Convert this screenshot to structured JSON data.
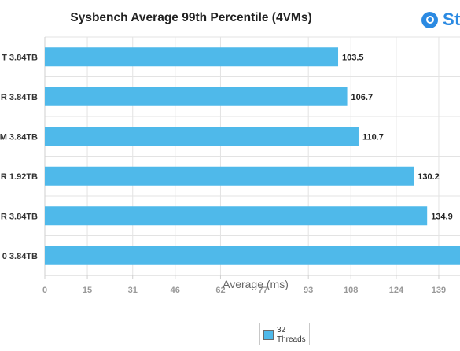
{
  "chart_data": {
    "type": "bar",
    "orientation": "horizontal",
    "title": "Sysbench Average 99th Percentile (4VMs)",
    "xlabel": "Average (ms)",
    "categories": [
      "T 3.84TB",
      "R 3.84TB",
      "M 3.84TB",
      "R 1.92TB",
      "R 3.84TB",
      "0 3.84TB"
    ],
    "series": [
      {
        "name": "32 Threads",
        "color": "#4fb9ea",
        "values": [
          103.5,
          106.7,
          110.7,
          130.2,
          134.9,
          150
        ]
      }
    ],
    "value_labels": [
      "103.5",
      "106.7",
      "110.7",
      "130.2",
      "134.9",
      ""
    ],
    "x_ticks": [
      0,
      15,
      31,
      46,
      62,
      77,
      93,
      108,
      124,
      139
    ],
    "xlim": [
      0,
      146.5
    ],
    "grid": true,
    "legend_position": "bottom-center"
  },
  "header": {
    "brand_text": "Sto"
  },
  "legend": {
    "line1": "32",
    "line2": "Threads"
  },
  "colors": {
    "bar": "#4fb9ea",
    "brand": "#2b8ae2",
    "grid": "#e3e3e3"
  }
}
